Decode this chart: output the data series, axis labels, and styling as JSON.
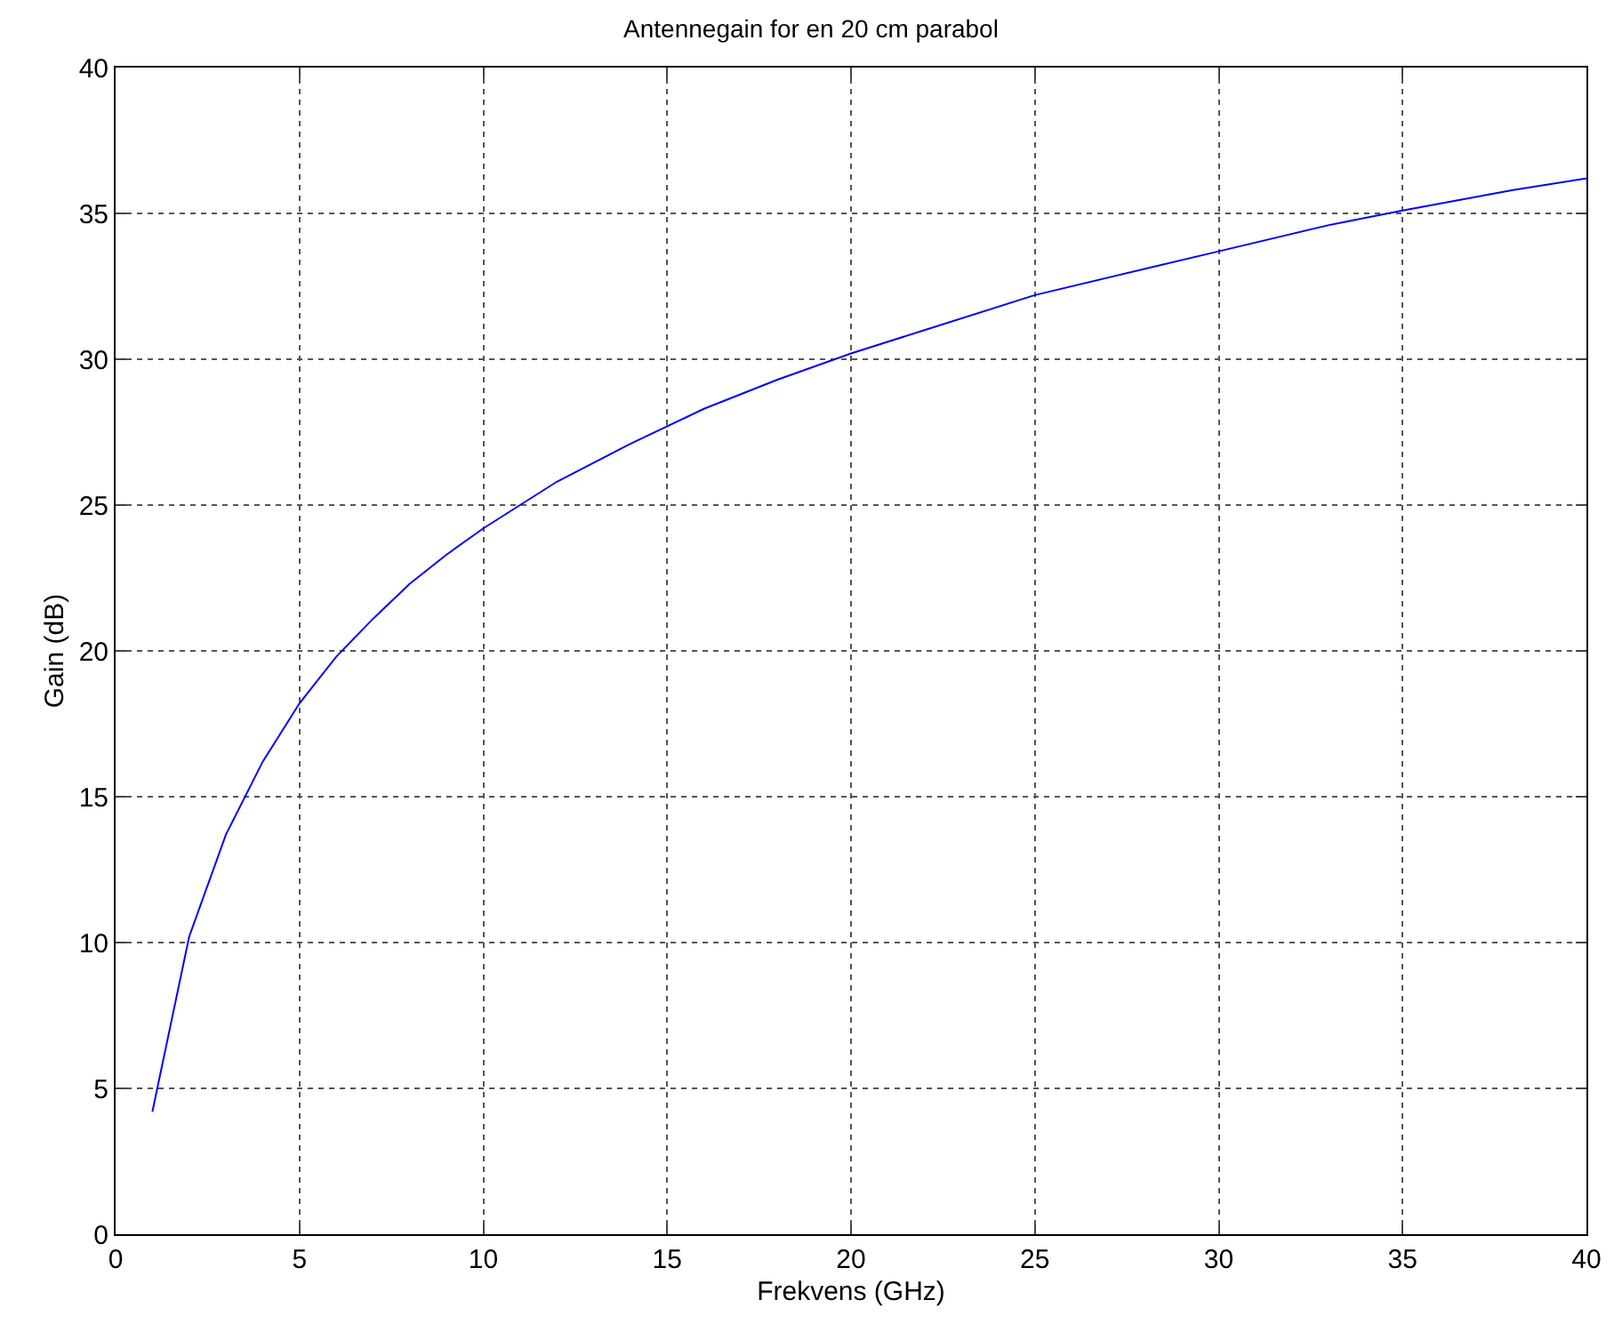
{
  "chart_data": {
    "type": "line",
    "title": "Antennegain for en 20 cm parabol",
    "xlabel": "Frekvens (GHz)",
    "ylabel": "Gain (dB)",
    "x": [
      1,
      2,
      3,
      4,
      5,
      6,
      7,
      8,
      9,
      10,
      12,
      14,
      16,
      18,
      20,
      22,
      25,
      28,
      30,
      33,
      35,
      38,
      40
    ],
    "series": [
      {
        "color": "#0000ff",
        "values": [
          4.2,
          10.2,
          13.7,
          16.2,
          18.2,
          19.8,
          21.1,
          22.3,
          23.3,
          24.2,
          25.8,
          27.1,
          28.3,
          29.3,
          30.2,
          31.0,
          32.2,
          33.1,
          33.7,
          34.6,
          35.1,
          35.8,
          36.2
        ]
      }
    ],
    "xlim": [
      0,
      40
    ],
    "xticks": [
      0,
      5,
      10,
      15,
      20,
      25,
      30,
      35,
      40
    ],
    "ylim": [
      0,
      40
    ],
    "yticks": [
      0,
      5,
      10,
      15,
      20,
      25,
      30,
      35,
      40
    ],
    "grid": true,
    "line_style": "solid",
    "marker": "none"
  }
}
